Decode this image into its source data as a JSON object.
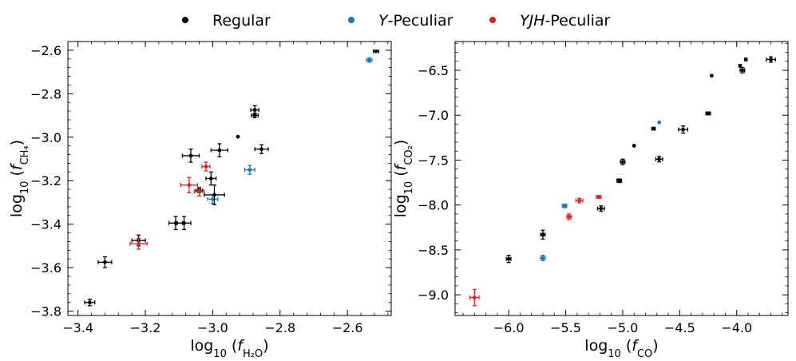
{
  "legend": {
    "entries": [
      {
        "key": "regular",
        "label": "Regular",
        "color": "#000000"
      },
      {
        "key": "ypec",
        "label": "Y-Peculiar",
        "color": "#1f77b4"
      },
      {
        "key": "yjhpec",
        "label": "YJH-Peculiar",
        "color": "#d62728"
      }
    ]
  },
  "chart_data": [
    {
      "type": "scatter",
      "id": "left",
      "xlabel": {
        "pre": "log",
        "sub1": "10",
        "mid": " (",
        "var": "f",
        "sub2": "H₂O",
        "post": ")"
      },
      "ylabel": {
        "pre": "log",
        "sub1": "10",
        "mid": " (",
        "var": "f",
        "sub2": "CH₄",
        "post": ")"
      },
      "xlim": [
        -3.43,
        -2.47
      ],
      "ylim": [
        -3.82,
        -2.56
      ],
      "xticks": [
        -3.4,
        -3.2,
        -3.0,
        -2.8,
        -2.6
      ],
      "xtick_labels": [
        "−3.4",
        "−3.2",
        "−3.0",
        "−2.8",
        "−2.6"
      ],
      "yticks": [
        -3.8,
        -3.6,
        -3.4,
        -3.2,
        -3.0,
        -2.8,
        -2.6
      ],
      "ytick_labels": [
        "−3.8",
        "−3.6",
        "−3.4",
        "−3.2",
        "−3.0",
        "−2.8",
        "−2.6"
      ],
      "points": [
        {
          "x": -3.365,
          "y": -3.76,
          "xerr": 0.015,
          "yerr": 0.015,
          "group": "regular"
        },
        {
          "x": -3.32,
          "y": -3.575,
          "xerr": 0.02,
          "yerr": 0.025,
          "group": "regular"
        },
        {
          "x": -3.22,
          "y": -3.475,
          "xerr": 0.02,
          "yerr": 0.025,
          "group": "regular"
        },
        {
          "x": -3.22,
          "y": -3.49,
          "xerr": 0.025,
          "yerr": 0.025,
          "group": "yjhpec"
        },
        {
          "x": -3.11,
          "y": -3.395,
          "xerr": 0.02,
          "yerr": 0.03,
          "group": "regular"
        },
        {
          "x": -3.085,
          "y": -3.395,
          "xerr": 0.02,
          "yerr": 0.03,
          "group": "regular"
        },
        {
          "x": -3.07,
          "y": -3.22,
          "xerr": 0.025,
          "yerr": 0.035,
          "group": "yjhpec"
        },
        {
          "x": -3.065,
          "y": -3.085,
          "xerr": 0.025,
          "yerr": 0.03,
          "group": "regular"
        },
        {
          "x": -3.04,
          "y": -3.245,
          "xerr": 0.01,
          "yerr": 0.01,
          "group": "regular"
        },
        {
          "x": -3.04,
          "y": -3.25,
          "xerr": 0.015,
          "yerr": 0.02,
          "group": "yjhpec"
        },
        {
          "x": -3.02,
          "y": -3.135,
          "xerr": 0.012,
          "yerr": 0.02,
          "group": "yjhpec"
        },
        {
          "x": -3.005,
          "y": -3.19,
          "xerr": 0.015,
          "yerr": 0.03,
          "group": "regular"
        },
        {
          "x": -3.0,
          "y": -3.285,
          "xerr": 0.015,
          "yerr": 0.02,
          "group": "ypec"
        },
        {
          "x": -2.995,
          "y": -3.265,
          "xerr": 0.03,
          "yerr": 0.045,
          "group": "regular"
        },
        {
          "x": -2.98,
          "y": -3.06,
          "xerr": 0.025,
          "yerr": 0.03,
          "group": "regular"
        },
        {
          "x": -2.925,
          "y": -2.998,
          "xerr": 0.0,
          "yerr": 0.0,
          "group": "regular"
        },
        {
          "x": -2.89,
          "y": -3.15,
          "xerr": 0.015,
          "yerr": 0.02,
          "group": "ypec"
        },
        {
          "x": -2.875,
          "y": -2.875,
          "xerr": 0.012,
          "yerr": 0.02,
          "group": "regular"
        },
        {
          "x": -2.875,
          "y": -2.9,
          "xerr": 0.01,
          "yerr": 0.01,
          "group": "regular"
        },
        {
          "x": -2.855,
          "y": -3.055,
          "xerr": 0.02,
          "yerr": 0.02,
          "group": "regular"
        },
        {
          "x": -2.535,
          "y": -2.645,
          "xerr": 0.008,
          "yerr": 0.01,
          "group": "ypec"
        },
        {
          "x": -2.515,
          "y": -2.605,
          "xerr": 0.008,
          "yerr": 0.0,
          "group": "regular"
        }
      ]
    },
    {
      "type": "scatter",
      "id": "right",
      "xlabel": {
        "pre": "log",
        "sub1": "10",
        "mid": " (",
        "var": "f",
        "sub2": "CO",
        "post": ")"
      },
      "ylabel": {
        "pre": "log",
        "sub1": "10",
        "mid": " (",
        "var": "f",
        "sub2": "CO₂",
        "post": ")"
      },
      "xlim": [
        -6.47,
        -3.55
      ],
      "ylim": [
        -9.23,
        -6.18
      ],
      "xticks": [
        -6.0,
        -5.5,
        -5.0,
        -4.5,
        -4.0
      ],
      "xtick_labels": [
        "−6.0",
        "−5.5",
        "−5.0",
        "−4.5",
        "−4.0"
      ],
      "yticks": [
        -9.0,
        -8.5,
        -8.0,
        -7.5,
        -7.0,
        -6.5
      ],
      "ytick_labels": [
        "−9.0",
        "−8.5",
        "−8.0",
        "−7.5",
        "−7.0",
        "−6.5"
      ],
      "points": [
        {
          "x": -6.3,
          "y": -9.03,
          "xerr": 0.04,
          "yerr": 0.09,
          "group": "yjhpec"
        },
        {
          "x": -6.0,
          "y": -8.6,
          "xerr": 0.02,
          "yerr": 0.04,
          "group": "regular"
        },
        {
          "x": -5.7,
          "y": -8.33,
          "xerr": 0.02,
          "yerr": 0.05,
          "group": "regular"
        },
        {
          "x": -5.7,
          "y": -8.59,
          "xerr": 0.02,
          "yerr": 0.03,
          "group": "ypec"
        },
        {
          "x": -5.51,
          "y": -8.01,
          "xerr": 0.02,
          "yerr": 0.02,
          "group": "ypec"
        },
        {
          "x": -5.47,
          "y": -8.13,
          "xerr": 0.02,
          "yerr": 0.03,
          "group": "yjhpec"
        },
        {
          "x": -5.38,
          "y": -7.95,
          "xerr": 0.03,
          "yerr": 0.025,
          "group": "yjhpec"
        },
        {
          "x": -5.21,
          "y": -7.91,
          "xerr": 0.02,
          "yerr": 0.015,
          "group": "yjhpec"
        },
        {
          "x": -5.19,
          "y": -8.04,
          "xerr": 0.03,
          "yerr": 0.03,
          "group": "regular"
        },
        {
          "x": -5.03,
          "y": -7.73,
          "xerr": 0.02,
          "yerr": 0.02,
          "group": "regular"
        },
        {
          "x": -5.0,
          "y": -7.52,
          "xerr": 0.02,
          "yerr": 0.03,
          "group": "regular"
        },
        {
          "x": -4.9,
          "y": -7.34,
          "xerr": 0.0,
          "yerr": 0.0,
          "group": "regular"
        },
        {
          "x": -4.73,
          "y": -7.15,
          "xerr": 0.015,
          "yerr": 0.0,
          "group": "regular"
        },
        {
          "x": -4.68,
          "y": -7.08,
          "xerr": 0.0,
          "yerr": 0.0,
          "group": "ypec"
        },
        {
          "x": -4.68,
          "y": -7.49,
          "xerr": 0.03,
          "yerr": 0.03,
          "group": "regular"
        },
        {
          "x": -4.47,
          "y": -7.16,
          "xerr": 0.04,
          "yerr": 0.04,
          "group": "regular"
        },
        {
          "x": -4.25,
          "y": -6.98,
          "xerr": 0.02,
          "yerr": 0.015,
          "group": "regular"
        },
        {
          "x": -4.22,
          "y": -6.56,
          "xerr": 0.0,
          "yerr": 0.0,
          "group": "regular"
        },
        {
          "x": -3.97,
          "y": -6.45,
          "xerr": 0.01,
          "yerr": 0.0,
          "group": "regular"
        },
        {
          "x": -3.95,
          "y": -6.5,
          "xerr": 0.02,
          "yerr": 0.03,
          "group": "regular"
        },
        {
          "x": -3.92,
          "y": -6.38,
          "xerr": 0.01,
          "yerr": 0.0,
          "group": "regular"
        },
        {
          "x": -3.7,
          "y": -6.38,
          "xerr": 0.04,
          "yerr": 0.03,
          "group": "regular"
        }
      ]
    }
  ]
}
